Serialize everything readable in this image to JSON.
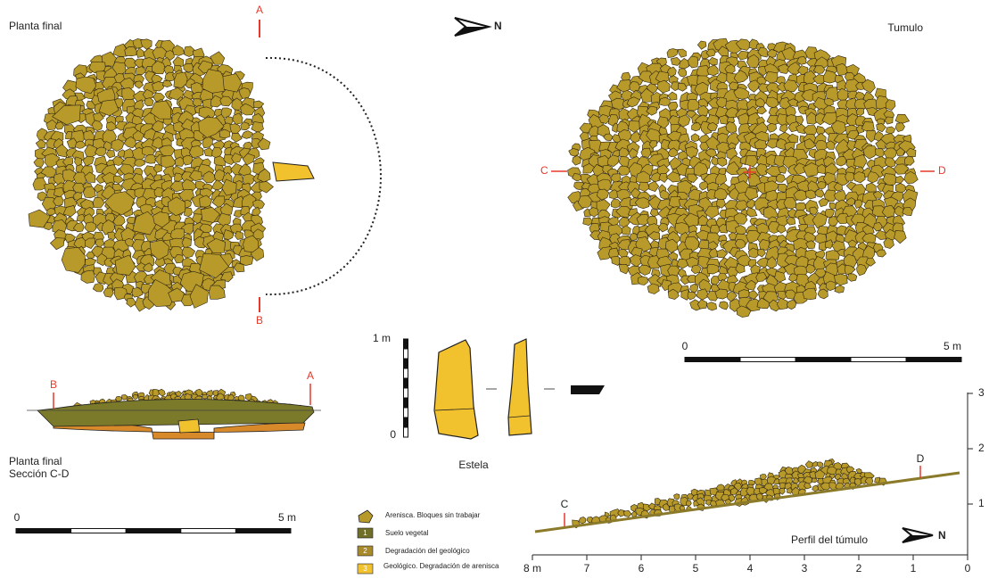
{
  "plan_left": {
    "title": "Planta final",
    "label_a": "A",
    "label_b": "B"
  },
  "north_top": "N",
  "plan_right": {
    "title": "Tumulo",
    "label_c": "C",
    "label_d": "D"
  },
  "scale_right": {
    "start": "0",
    "end": "5 m"
  },
  "section_ab": {
    "label_b": "B",
    "label_a": "A",
    "caption": [
      "Planta final",
      "Sección C-D"
    ]
  },
  "scale_left": {
    "start": "0",
    "end": "5 m"
  },
  "stela": {
    "scale_top": "1 m",
    "scale_bottom": "0",
    "caption": "Estela"
  },
  "legend": [
    {
      "text": "Arenisca. Bloques sin trabajar"
    },
    {
      "key": "1",
      "text": "Suelo vegetal"
    },
    {
      "key": "2",
      "text": "Degradación del geológico"
    },
    {
      "key": "3",
      "text": "Geológico. Degradación de arenisca"
    }
  ],
  "profile": {
    "title": "Perfil del túmulo",
    "north": "N",
    "label_c": "C",
    "label_d": "D",
    "x_labels": [
      "8 m",
      "7",
      "6",
      "5",
      "4",
      "3",
      "2",
      "1",
      "0"
    ],
    "y_labels": [
      "1",
      "2",
      "3"
    ]
  }
}
